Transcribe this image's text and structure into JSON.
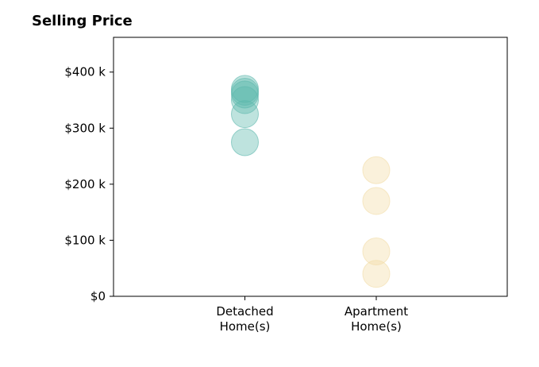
{
  "chart_data": {
    "type": "scatter",
    "title": "Selling Price",
    "categories": [
      "Detached\nHome(s)",
      "Apartment\nHome(s)"
    ],
    "ylim": [
      0,
      462000
    ],
    "yticks": [
      0,
      100000,
      200000,
      300000,
      400000
    ],
    "ytick_labels": [
      "$0",
      "$100 k",
      "$200 k",
      "$300 k",
      "$400 k"
    ],
    "grid": false,
    "series": [
      {
        "category_index": 0,
        "color": "#5db8ad",
        "values": [
          275000,
          325000,
          350000,
          360000,
          365000,
          370000
        ]
      },
      {
        "category_index": 1,
        "color": "#f2dca6",
        "values": [
          40000,
          80000,
          170000,
          225000
        ]
      }
    ]
  }
}
